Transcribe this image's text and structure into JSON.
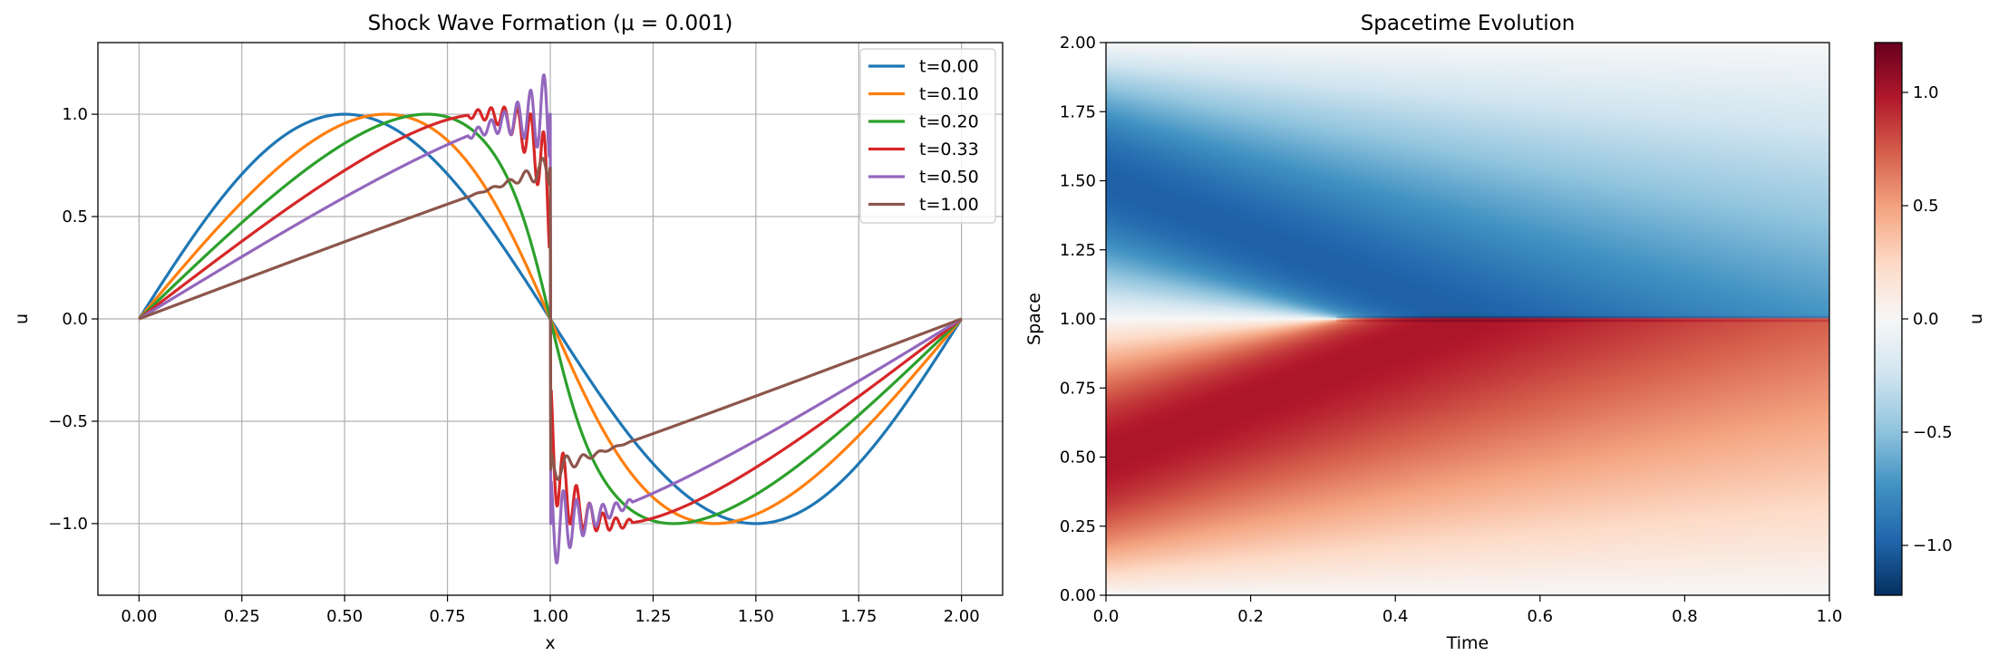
{
  "figure": {
    "chart_data": [
      {
        "type": "line",
        "title": "Shock Wave Formation (μ = 0.001)",
        "xlabel": "x",
        "ylabel": "u",
        "xlim": [
          -0.1,
          2.1
        ],
        "ylim": [
          -1.35,
          1.35
        ],
        "xticks": [
          "0.00",
          "0.25",
          "0.50",
          "0.75",
          "1.00",
          "1.25",
          "1.50",
          "1.75",
          "2.00"
        ],
        "yticks": [
          "−1.0",
          "−0.5",
          "0.0",
          "0.5",
          "1.0"
        ],
        "grid": true,
        "legend_position": "top-right",
        "series": [
          {
            "name": "t=0.00",
            "color": "#1f77b4",
            "t": 0.0
          },
          {
            "name": "t=0.10",
            "color": "#ff7f0e",
            "t": 0.1
          },
          {
            "name": "t=0.20",
            "color": "#2ca02c",
            "t": 0.2
          },
          {
            "name": "t=0.33",
            "color": "#d62728",
            "t": 0.333
          },
          {
            "name": "t=0.50",
            "color": "#9467bd",
            "t": 0.5
          },
          {
            "name": "t=1.00",
            "color": "#8c564b",
            "t": 1.0
          }
        ]
      },
      {
        "type": "heatmap",
        "title": "Spacetime Evolution",
        "xlabel": "Time",
        "ylabel": "Space",
        "xlim": [
          0.0,
          1.0
        ],
        "ylim": [
          0.0,
          2.0
        ],
        "xticks": [
          "0.0",
          "0.2",
          "0.4",
          "0.6",
          "0.8",
          "1.0"
        ],
        "yticks": [
          "0.00",
          "0.25",
          "0.50",
          "0.75",
          "1.00",
          "1.25",
          "1.50",
          "1.75",
          "2.00"
        ],
        "colormap": "RdBu_r",
        "colorbar": {
          "label": "u",
          "range": [
            -1.22,
            1.22
          ],
          "ticks": [
            "−1.0",
            "−0.5",
            "0.0",
            "0.5",
            "1.0"
          ]
        }
      }
    ]
  }
}
